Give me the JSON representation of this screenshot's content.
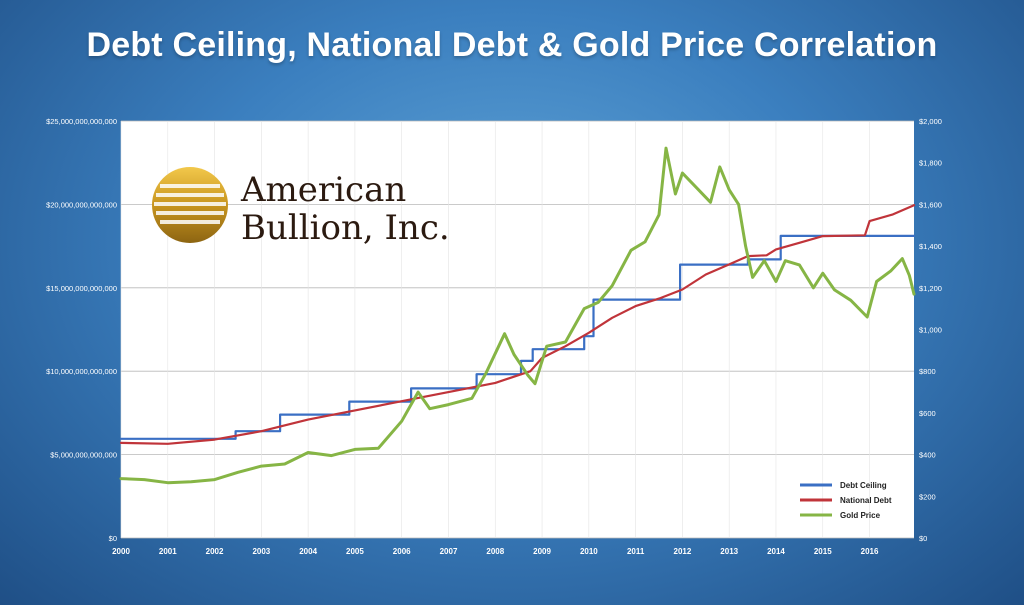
{
  "title": "Debt Ceiling, National Debt & Gold Price Correlation",
  "logo": {
    "line1": "American",
    "line2": "Bullion, Inc."
  },
  "colors": {
    "debt_ceiling": "#3a6fc4",
    "national_debt": "#c0343a",
    "gold_price": "#86b545",
    "plot_bg": "#ffffff",
    "grid": "#b9b9b9",
    "logo_gold": "#c8951f"
  },
  "chart_data": {
    "type": "line",
    "title": "Debt Ceiling, National Debt & Gold Price Correlation",
    "x_ticks": [
      "2000",
      "2001",
      "2002",
      "2003",
      "2004",
      "2005",
      "2006",
      "2007",
      "2008",
      "2009",
      "2010",
      "2011",
      "2012",
      "2013",
      "2014",
      "2015",
      "2016"
    ],
    "xlim": [
      2000,
      2016.95
    ],
    "y_left_ticks": [
      "$0",
      "$5,000,000,000,000",
      "$10,000,000,000,000",
      "$15,000,000,000,000",
      "$20,000,000,000,000",
      "$25,000,000,000,000"
    ],
    "y_left_lim": [
      0,
      25000000000000
    ],
    "y_right_ticks": [
      "$0",
      "$200",
      "$400",
      "$600",
      "$800",
      "$1,000",
      "$1,200",
      "$1,400",
      "$1,600",
      "$1,800",
      "$2,000"
    ],
    "y_right_lim": [
      0,
      2000
    ],
    "grid": "horizontal",
    "legend_position": "bottom-right",
    "series": [
      {
        "name": "Debt Ceiling",
        "axis": "left",
        "step": true,
        "points": [
          [
            2000,
            5950000000000.0
          ],
          [
            2002.45,
            6400000000000.0
          ],
          [
            2003.4,
            7400000000000.0
          ],
          [
            2004.88,
            8180000000000.0
          ],
          [
            2006.2,
            8970000000000.0
          ],
          [
            2007.6,
            9820000000000.0
          ],
          [
            2008.55,
            10620000000000.0
          ],
          [
            2008.8,
            11320000000000.0
          ],
          [
            2009.9,
            12100000000000.0
          ],
          [
            2010.1,
            14290000000000.0
          ],
          [
            2011.95,
            16390000000000.0
          ],
          [
            2013.4,
            16700000000000.0
          ],
          [
            2014.1,
            18110000000000.0
          ],
          [
            2016.95,
            18110000000000.0
          ]
        ]
      },
      {
        "name": "National Debt",
        "axis": "left",
        "points": [
          [
            2000,
            5700000000000.0
          ],
          [
            2001,
            5650000000000.0
          ],
          [
            2002,
            5900000000000.0
          ],
          [
            2003,
            6400000000000.0
          ],
          [
            2004,
            7100000000000.0
          ],
          [
            2005,
            7650000000000.0
          ],
          [
            2006,
            8200000000000.0
          ],
          [
            2007,
            8750000000000.0
          ],
          [
            2008,
            9300000000000.0
          ],
          [
            2008.75,
            10000000000000.0
          ],
          [
            2009,
            10800000000000.0
          ],
          [
            2009.5,
            11500000000000.0
          ],
          [
            2010,
            12300000000000.0
          ],
          [
            2010.5,
            13200000000000.0
          ],
          [
            2011,
            13900000000000.0
          ],
          [
            2011.5,
            14350000000000.0
          ],
          [
            2012,
            14900000000000.0
          ],
          [
            2012.5,
            15800000000000.0
          ],
          [
            2013,
            16400000000000.0
          ],
          [
            2013.4,
            16900000000000.0
          ],
          [
            2013.8,
            16950000000000.0
          ],
          [
            2014,
            17300000000000.0
          ],
          [
            2014.5,
            17700000000000.0
          ],
          [
            2015,
            18100000000000.0
          ],
          [
            2015.9,
            18150000000000.0
          ],
          [
            2016,
            19000000000000.0
          ],
          [
            2016.5,
            19400000000000.0
          ],
          [
            2016.95,
            19950000000000.0
          ]
        ]
      },
      {
        "name": "Gold Price",
        "axis": "right",
        "points": [
          [
            2000,
            285
          ],
          [
            2000.5,
            280
          ],
          [
            2001,
            265
          ],
          [
            2001.5,
            270
          ],
          [
            2002,
            280
          ],
          [
            2002.5,
            315
          ],
          [
            2003,
            345
          ],
          [
            2003.5,
            355
          ],
          [
            2004,
            410
          ],
          [
            2004.5,
            395
          ],
          [
            2005,
            425
          ],
          [
            2005.5,
            430
          ],
          [
            2006,
            560
          ],
          [
            2006.35,
            700
          ],
          [
            2006.6,
            620
          ],
          [
            2007,
            640
          ],
          [
            2007.5,
            670
          ],
          [
            2007.8,
            790
          ],
          [
            2008.2,
            980
          ],
          [
            2008.4,
            880
          ],
          [
            2008.7,
            780
          ],
          [
            2008.85,
            740
          ],
          [
            2009.1,
            920
          ],
          [
            2009.5,
            940
          ],
          [
            2009.9,
            1100
          ],
          [
            2010.2,
            1130
          ],
          [
            2010.5,
            1210
          ],
          [
            2010.9,
            1380
          ],
          [
            2011.2,
            1420
          ],
          [
            2011.5,
            1550
          ],
          [
            2011.65,
            1870
          ],
          [
            2011.85,
            1650
          ],
          [
            2012.0,
            1750
          ],
          [
            2012.3,
            1680
          ],
          [
            2012.6,
            1610
          ],
          [
            2012.8,
            1780
          ],
          [
            2013.0,
            1670
          ],
          [
            2013.2,
            1600
          ],
          [
            2013.35,
            1400
          ],
          [
            2013.5,
            1250
          ],
          [
            2013.75,
            1330
          ],
          [
            2014.0,
            1230
          ],
          [
            2014.2,
            1330
          ],
          [
            2014.5,
            1310
          ],
          [
            2014.8,
            1200
          ],
          [
            2015.0,
            1270
          ],
          [
            2015.25,
            1190
          ],
          [
            2015.6,
            1140
          ],
          [
            2015.95,
            1060
          ],
          [
            2016.15,
            1230
          ],
          [
            2016.45,
            1280
          ],
          [
            2016.7,
            1340
          ],
          [
            2016.85,
            1260
          ],
          [
            2016.95,
            1170
          ]
        ]
      }
    ]
  }
}
